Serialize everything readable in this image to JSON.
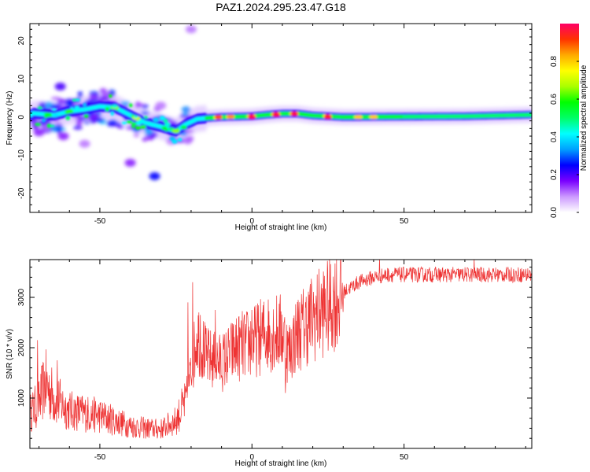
{
  "title": "PAZ1.2024.295.23.47.G18",
  "chart_data": [
    {
      "type": "heatmap",
      "xlabel": "Height of straight line (km)",
      "ylabel": "Frequency (Hz)",
      "xlim": [
        -73,
        92
      ],
      "ylim": [
        -25,
        24.5
      ],
      "xticks": [
        -50,
        0,
        50
      ],
      "yticks": [
        -20,
        -10,
        0,
        10,
        20
      ],
      "colorbar": {
        "label": "Normalized spectral amplitude",
        "range": [
          0,
          1
        ],
        "ticks": [
          0.0,
          0.2,
          0.4,
          0.6,
          0.8
        ],
        "tick_labels": [
          "0.0",
          "0.2",
          "0.4",
          "0.6",
          "0.8"
        ],
        "colors": [
          "#ffffff",
          "#cc99ff",
          "#7a00ff",
          "#0000ff",
          "#00a0ff",
          "#00ffff",
          "#00ff66",
          "#00ff00",
          "#aaff00",
          "#ffff00",
          "#ffaa00",
          "#ff3300",
          "#ff0066"
        ]
      },
      "ridge": [
        [
          -72,
          1.0
        ],
        [
          -65,
          0.5
        ],
        [
          -60,
          1.5
        ],
        [
          -55,
          2.0
        ],
        [
          -50,
          2.8
        ],
        [
          -45,
          2.5
        ],
        [
          -40,
          0.5
        ],
        [
          -35,
          -1.5
        ],
        [
          -30,
          -2.5
        ],
        [
          -25,
          -3.7
        ],
        [
          -22,
          -2.0
        ],
        [
          -18,
          -0.5
        ],
        [
          -14,
          -0.2
        ],
        [
          -10,
          0.0
        ],
        [
          -5,
          0.1
        ],
        [
          0,
          0.2
        ],
        [
          5,
          0.6
        ],
        [
          10,
          0.9
        ],
        [
          15,
          0.9
        ],
        [
          20,
          0.4
        ],
        [
          30,
          0.0
        ],
        [
          50,
          0.1
        ],
        [
          70,
          0.2
        ],
        [
          92,
          0.6
        ]
      ],
      "hotspots": [
        {
          "x": 0,
          "y": 0,
          "amp": 0.98
        },
        {
          "x": 8,
          "y": 0.6,
          "amp": 0.98
        },
        {
          "x": 14,
          "y": 0.8,
          "amp": 0.98
        },
        {
          "x": 25,
          "y": 0,
          "amp": 0.95
        },
        {
          "x": -11,
          "y": 0,
          "amp": 0.9
        },
        {
          "x": -7,
          "y": 0.1,
          "amp": 0.85
        },
        {
          "x": 35,
          "y": 0,
          "amp": 0.8
        },
        {
          "x": 40,
          "y": 0,
          "amp": 0.8
        },
        {
          "x": -38,
          "y": -0.3,
          "amp": 0.7
        },
        {
          "x": -45,
          "y": 2.5,
          "amp": 0.65
        },
        {
          "x": -25,
          "y": -3.7,
          "amp": 0.65
        },
        {
          "x": -60,
          "y": 1.5,
          "amp": 0.6
        },
        {
          "x": -67,
          "y": 0.5,
          "amp": 0.55
        }
      ],
      "patches": [
        {
          "x": -32,
          "y": -15.5,
          "amp": 0.25
        },
        {
          "x": -40,
          "y": -12,
          "amp": 0.15
        },
        {
          "x": -20,
          "y": 23,
          "amp": 0.1
        },
        {
          "x": -63,
          "y": 8,
          "amp": 0.2
        },
        {
          "x": -70,
          "y": -4,
          "amp": 0.15
        },
        {
          "x": -55,
          "y": -7,
          "amp": 0.1
        },
        {
          "x": -62,
          "y": -5,
          "amp": 0.15
        },
        {
          "x": -30,
          "y": 3,
          "amp": 0.1
        }
      ]
    },
    {
      "type": "line",
      "xlabel": "Height of straight line (km)",
      "ylabel": "SNR (10 * v/v)",
      "xlim": [
        -73,
        92
      ],
      "ylim": [
        0,
        3750
      ],
      "xticks": [
        -50,
        0,
        50
      ],
      "yticks": [
        1000,
        2000,
        3000
      ],
      "color": "#ee3333",
      "envelope_x": [
        -73,
        -70,
        -68,
        -65,
        -60,
        -55,
        -50,
        -45,
        -40,
        -35,
        -30,
        -25,
        -22,
        -20,
        -18,
        -15,
        -10,
        -5,
        0,
        5,
        10,
        12,
        15,
        20,
        25,
        30,
        35,
        40,
        45,
        50,
        60,
        70,
        80,
        92
      ],
      "envelope_y": [
        700,
        900,
        1300,
        1000,
        750,
        700,
        650,
        550,
        450,
        400,
        380,
        550,
        900,
        1500,
        2300,
        1800,
        1700,
        2000,
        2100,
        2300,
        2300,
        1900,
        2300,
        2600,
        2800,
        3100,
        3300,
        3400,
        3450,
        3450,
        3450,
        3450,
        3450,
        3450
      ],
      "spikes": [
        {
          "x": -70.5,
          "y": 2150
        },
        {
          "x": -64,
          "y": 1750
        },
        {
          "x": -19.5,
          "y": 3300
        },
        {
          "x": -21,
          "y": 2900
        },
        {
          "x": -17,
          "y": 2650
        },
        {
          "x": -12,
          "y": 2750
        },
        {
          "x": 0,
          "y": 2750
        },
        {
          "x": 11,
          "y": 1100
        },
        {
          "x": 42,
          "y": 3800
        },
        {
          "x": 73,
          "y": 3800
        }
      ]
    }
  ]
}
